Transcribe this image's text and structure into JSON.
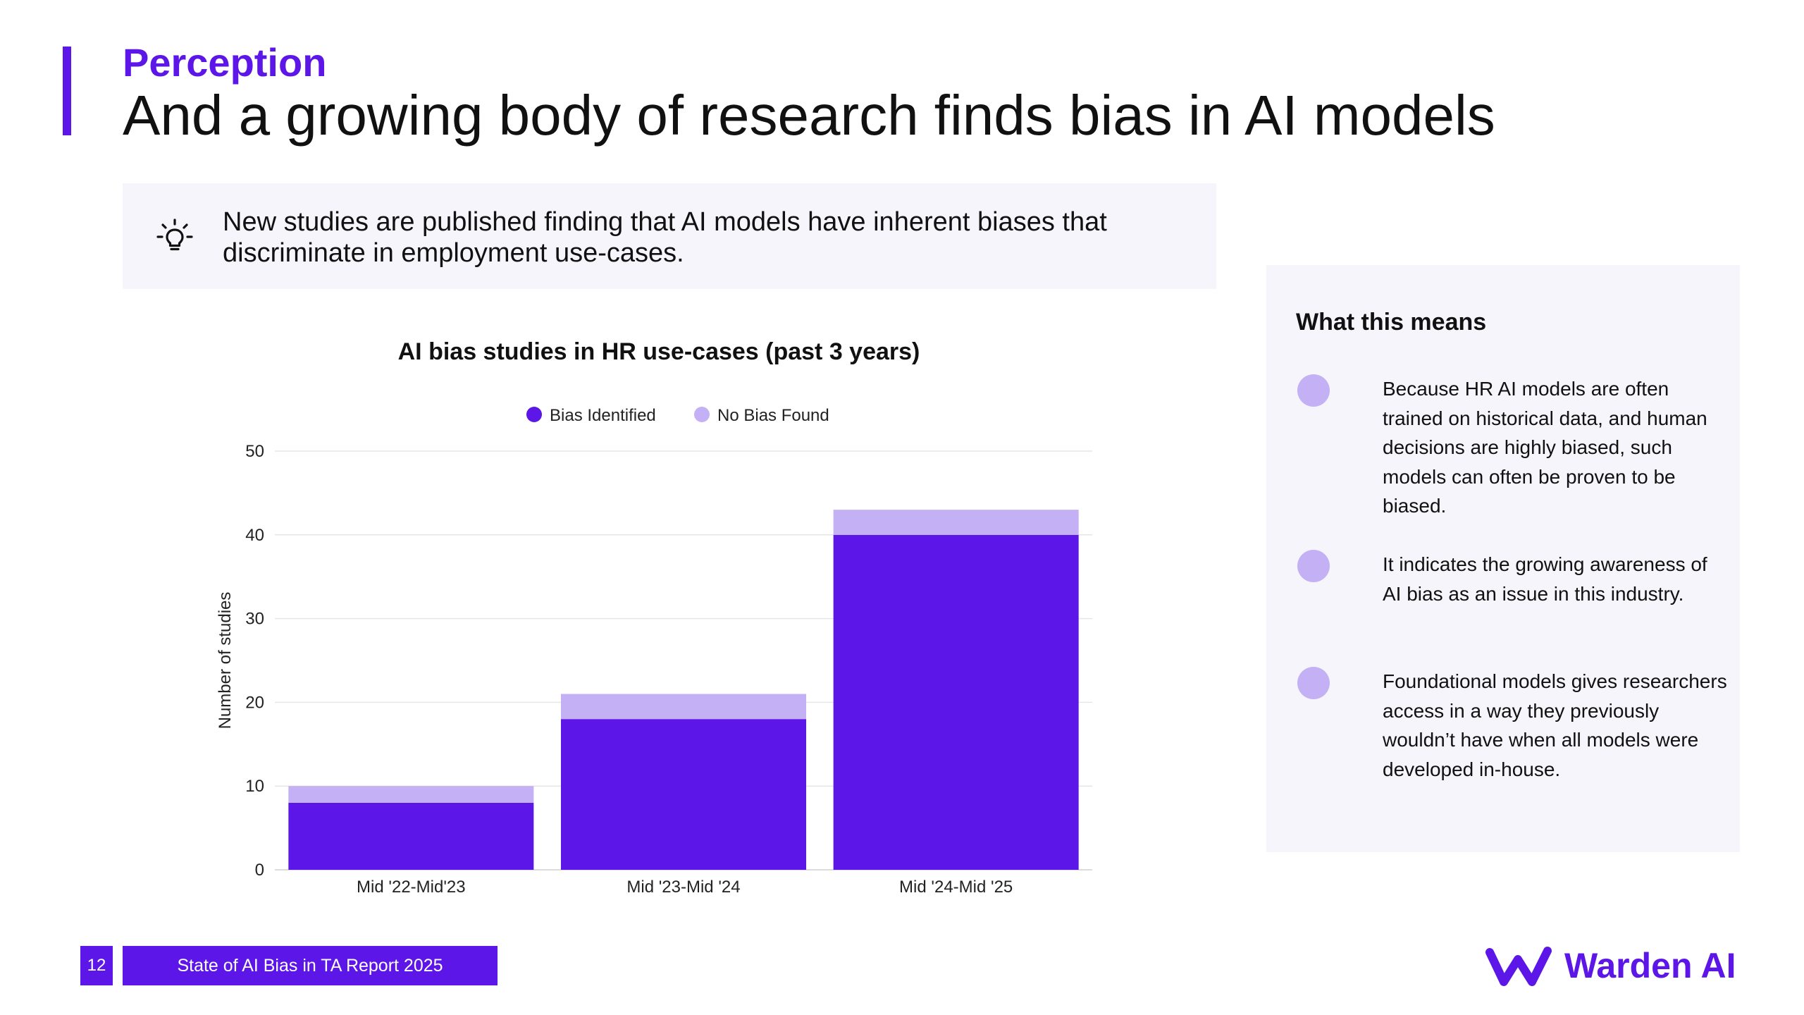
{
  "header": {
    "section": "Perception",
    "title": "And a growing body of research finds bias in AI models"
  },
  "callout": {
    "icon": "lightbulb-icon",
    "text": "New studies are published finding that AI models have inherent biases that discriminate in employment use-cases."
  },
  "colors": {
    "accent": "#5c16e8",
    "light_accent": "#c4b0f4",
    "panel_bg": "#f6f5fc"
  },
  "chart_data": {
    "type": "bar",
    "stacked": true,
    "title": "AI bias studies in HR use-cases (past 3 years)",
    "categories": [
      "Mid '22-Mid'23",
      "Mid '23-Mid '24",
      "Mid '24-Mid '25"
    ],
    "series": [
      {
        "name": "Bias Identified",
        "values": [
          8,
          18,
          40
        ],
        "color": "#5c16e8"
      },
      {
        "name": "No Bias Found",
        "values": [
          2,
          3,
          3
        ],
        "color": "#c4b0f4"
      }
    ],
    "xlabel": "",
    "ylabel": "Number of studies",
    "ylim": [
      0,
      50
    ],
    "yticks": [
      "0",
      "10",
      "20",
      "30",
      "40",
      "50"
    ],
    "grid": true,
    "legend_position": "top"
  },
  "side_panel": {
    "title": "What this means",
    "points": [
      {
        "text": "Because HR AI models are often trained on historical data, and human decisions are highly biased, such models can often be proven to be biased."
      },
      {
        "text": "It indicates the growing awareness of AI bias as an issue in this industry."
      },
      {
        "text": "Foundational models gives researchers access in a way they previously wouldn’t have when all models were developed in-house."
      }
    ]
  },
  "footer": {
    "page_number": "12",
    "report_title": "State of AI Bias in TA Report 2025",
    "logo_text": "Warden AI"
  }
}
